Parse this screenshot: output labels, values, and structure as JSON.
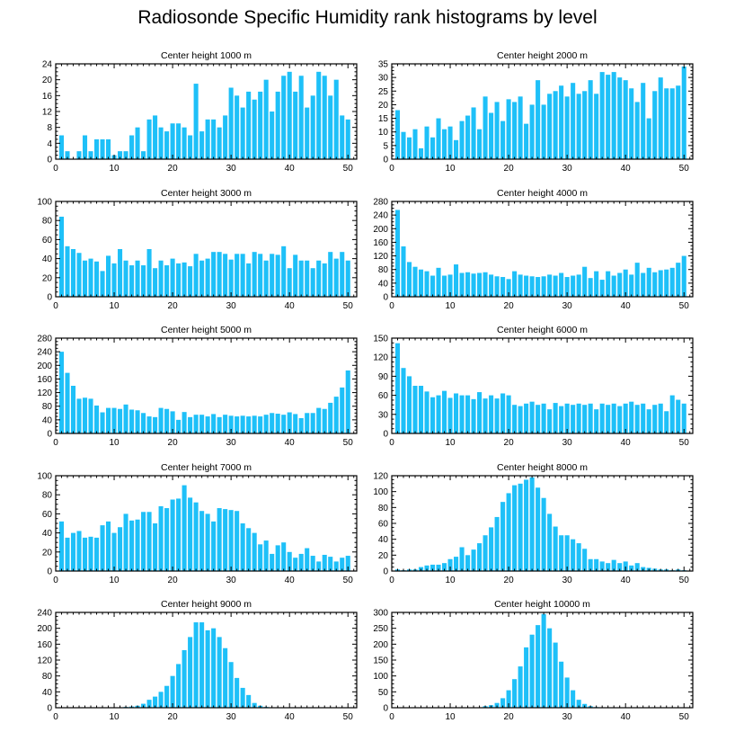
{
  "title": "Radiosonde Specific Humidity rank histograms by level",
  "colors": {
    "bar": "#1ec0f8",
    "axis": "#000000",
    "background": "#ffffff"
  },
  "chart_data": [
    {
      "type": "bar",
      "title": "Center height 1000 m",
      "x_ticks": [
        0,
        10,
        20,
        30,
        40,
        50
      ],
      "ylim": [
        0,
        24
      ],
      "y_ticks": [
        0,
        4,
        8,
        12,
        16,
        20,
        24
      ],
      "values": [
        6,
        2,
        0,
        2,
        6,
        2,
        5,
        5,
        5,
        1,
        2,
        2,
        6,
        8,
        2,
        10,
        11,
        8,
        7,
        9,
        9,
        8,
        6,
        19,
        7,
        10,
        10,
        8,
        11,
        18,
        16,
        13,
        17,
        15,
        17,
        20,
        12,
        17,
        21,
        22,
        17,
        21,
        13,
        16,
        22,
        21,
        16,
        20,
        11,
        10
      ]
    },
    {
      "type": "bar",
      "title": "Center height 2000 m",
      "x_ticks": [
        0,
        10,
        20,
        30,
        40,
        50
      ],
      "ylim": [
        0,
        35
      ],
      "y_ticks": [
        0,
        5,
        10,
        15,
        20,
        25,
        30,
        35
      ],
      "values": [
        18,
        10,
        8,
        11,
        4,
        12,
        8,
        15,
        11,
        12,
        7,
        14,
        16,
        19,
        11,
        23,
        17,
        21,
        14,
        22,
        21,
        23,
        13,
        20,
        29,
        20,
        24,
        25,
        27,
        23,
        28,
        24,
        25,
        29,
        24,
        32,
        31,
        32,
        30,
        29,
        26,
        21,
        28,
        15,
        25,
        30,
        26,
        26,
        27,
        34
      ]
    },
    {
      "type": "bar",
      "title": "Center height 3000 m",
      "x_ticks": [
        0,
        10,
        20,
        30,
        40,
        50
      ],
      "ylim": [
        0,
        100
      ],
      "y_ticks": [
        0,
        20,
        40,
        60,
        80,
        100
      ],
      "values": [
        84,
        53,
        50,
        46,
        38,
        40,
        37,
        27,
        43,
        35,
        50,
        38,
        33,
        38,
        33,
        50,
        30,
        38,
        33,
        40,
        35,
        36,
        32,
        45,
        38,
        40,
        47,
        47,
        45,
        39,
        45,
        45,
        35,
        47,
        45,
        38,
        45,
        44,
        53,
        30,
        44,
        38,
        38,
        30,
        38,
        35,
        47,
        40,
        47,
        38
      ]
    },
    {
      "type": "bar",
      "title": "Center height 4000 m",
      "x_ticks": [
        0,
        10,
        20,
        30,
        40,
        50
      ],
      "ylim": [
        0,
        280
      ],
      "y_ticks": [
        0,
        40,
        80,
        120,
        160,
        200,
        240,
        280
      ],
      "values": [
        255,
        148,
        102,
        88,
        80,
        75,
        62,
        85,
        62,
        65,
        95,
        70,
        72,
        68,
        70,
        72,
        65,
        60,
        58,
        52,
        75,
        65,
        62,
        60,
        58,
        60,
        65,
        62,
        70,
        58,
        62,
        65,
        88,
        55,
        75,
        50,
        75,
        62,
        70,
        80,
        65,
        100,
        70,
        85,
        72,
        78,
        80,
        85,
        100,
        120
      ]
    },
    {
      "type": "bar",
      "title": "Center height 5000 m",
      "x_ticks": [
        0,
        10,
        20,
        30,
        40,
        50
      ],
      "ylim": [
        0,
        280
      ],
      "y_ticks": [
        0,
        40,
        80,
        120,
        160,
        200,
        240,
        280
      ],
      "values": [
        240,
        178,
        140,
        102,
        105,
        102,
        82,
        62,
        75,
        75,
        72,
        85,
        70,
        68,
        60,
        50,
        48,
        75,
        72,
        65,
        40,
        63,
        48,
        55,
        55,
        50,
        57,
        48,
        55,
        52,
        50,
        52,
        50,
        52,
        50,
        55,
        60,
        58,
        55,
        62,
        57,
        45,
        60,
        60,
        75,
        72,
        90,
        108,
        135,
        185
      ]
    },
    {
      "type": "bar",
      "title": "Center height 6000 m",
      "x_ticks": [
        0,
        10,
        20,
        30,
        40,
        50
      ],
      "ylim": [
        0,
        150
      ],
      "y_ticks": [
        0,
        30,
        60,
        90,
        120,
        150
      ],
      "values": [
        142,
        103,
        90,
        75,
        75,
        66,
        57,
        60,
        67,
        56,
        63,
        60,
        60,
        54,
        65,
        55,
        60,
        55,
        63,
        60,
        45,
        43,
        47,
        50,
        45,
        47,
        38,
        48,
        43,
        47,
        45,
        47,
        45,
        47,
        38,
        47,
        45,
        47,
        43,
        47,
        50,
        45,
        47,
        38,
        45,
        47,
        35,
        60,
        53,
        47
      ]
    },
    {
      "type": "bar",
      "title": "Center height 7000 m",
      "x_ticks": [
        0,
        10,
        20,
        30,
        40,
        50
      ],
      "ylim": [
        0,
        100
      ],
      "y_ticks": [
        0,
        20,
        40,
        60,
        80,
        100
      ],
      "values": [
        52,
        35,
        40,
        42,
        35,
        36,
        35,
        48,
        52,
        40,
        46,
        60,
        53,
        54,
        62,
        62,
        50,
        68,
        66,
        75,
        76,
        90,
        77,
        72,
        63,
        60,
        52,
        66,
        65,
        64,
        63,
        50,
        45,
        40,
        28,
        32,
        18,
        27,
        30,
        20,
        14,
        18,
        24,
        16,
        10,
        17,
        15,
        10,
        14,
        16
      ]
    },
    {
      "type": "bar",
      "title": "Center height 8000 m",
      "x_ticks": [
        0,
        10,
        20,
        30,
        40,
        50
      ],
      "ylim": [
        0,
        120
      ],
      "y_ticks": [
        0,
        20,
        40,
        60,
        80,
        100,
        120
      ],
      "values": [
        2,
        1,
        2,
        2,
        5,
        7,
        8,
        8,
        10,
        15,
        18,
        30,
        20,
        27,
        35,
        45,
        55,
        68,
        87,
        98,
        108,
        110,
        115,
        118,
        105,
        92,
        72,
        56,
        45,
        45,
        40,
        35,
        28,
        15,
        15,
        12,
        10,
        14,
        10,
        12,
        7,
        10,
        5,
        4,
        3,
        2,
        2,
        1,
        2,
        1
      ]
    },
    {
      "type": "bar",
      "title": "Center height 9000 m",
      "x_ticks": [
        0,
        10,
        20,
        30,
        40,
        50
      ],
      "ylim": [
        0,
        240
      ],
      "y_ticks": [
        0,
        40,
        80,
        120,
        160,
        200,
        240
      ],
      "values": [
        0,
        0,
        0,
        0,
        0,
        0,
        0,
        0,
        0,
        0,
        1,
        2,
        3,
        5,
        10,
        20,
        28,
        40,
        55,
        80,
        110,
        145,
        178,
        215,
        215,
        195,
        200,
        178,
        150,
        115,
        75,
        50,
        32,
        12,
        5,
        2,
        1,
        1,
        0,
        0,
        0,
        0,
        0,
        0,
        0,
        0,
        0,
        0,
        0,
        0
      ]
    },
    {
      "type": "bar",
      "title": "Center height 10000 m",
      "x_ticks": [
        0,
        10,
        20,
        30,
        40,
        50
      ],
      "ylim": [
        0,
        300
      ],
      "y_ticks": [
        0,
        50,
        100,
        150,
        200,
        250,
        300
      ],
      "values": [
        0,
        0,
        0,
        0,
        0,
        0,
        0,
        0,
        0,
        0,
        0,
        0,
        0,
        0,
        0,
        5,
        8,
        15,
        30,
        55,
        90,
        130,
        190,
        230,
        260,
        295,
        250,
        205,
        145,
        95,
        55,
        25,
        12,
        5,
        2,
        1,
        0,
        0,
        0,
        0,
        0,
        0,
        0,
        0,
        0,
        0,
        0,
        0,
        0,
        0
      ]
    }
  ]
}
